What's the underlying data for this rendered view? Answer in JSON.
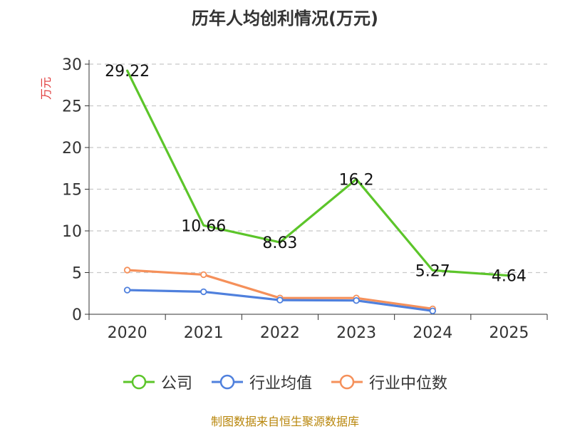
{
  "chart_data": {
    "type": "line",
    "title": "历年人均创利情况(万元)",
    "ylabel": "万元",
    "xlabel": "",
    "categories": [
      "2020",
      "2021",
      "2022",
      "2023",
      "2024",
      "2025"
    ],
    "yticks": [
      "0",
      "5",
      "10",
      "15",
      "20",
      "25",
      "30"
    ],
    "ylim": [
      0,
      30
    ],
    "grid": "horizontal dashed",
    "legend_position": "bottom",
    "series": [
      {
        "name": "公司",
        "color": "#5cc52a",
        "values": [
          29.22,
          10.66,
          8.63,
          16.2,
          5.27,
          4.64
        ],
        "labels": [
          "29.22",
          "10.66",
          "8.63",
          "16.2",
          "5.27",
          "4.64"
        ],
        "markers": false
      },
      {
        "name": "行业均值",
        "color": "#4f80dd",
        "values": [
          2.9,
          2.7,
          1.7,
          1.65,
          0.4,
          null
        ],
        "markers": true
      },
      {
        "name": "行业中位数",
        "color": "#f5905a",
        "values": [
          5.3,
          4.75,
          1.95,
          1.95,
          0.65,
          null
        ],
        "markers": true
      }
    ]
  },
  "source": "制图数据来自恒生聚源数据库"
}
